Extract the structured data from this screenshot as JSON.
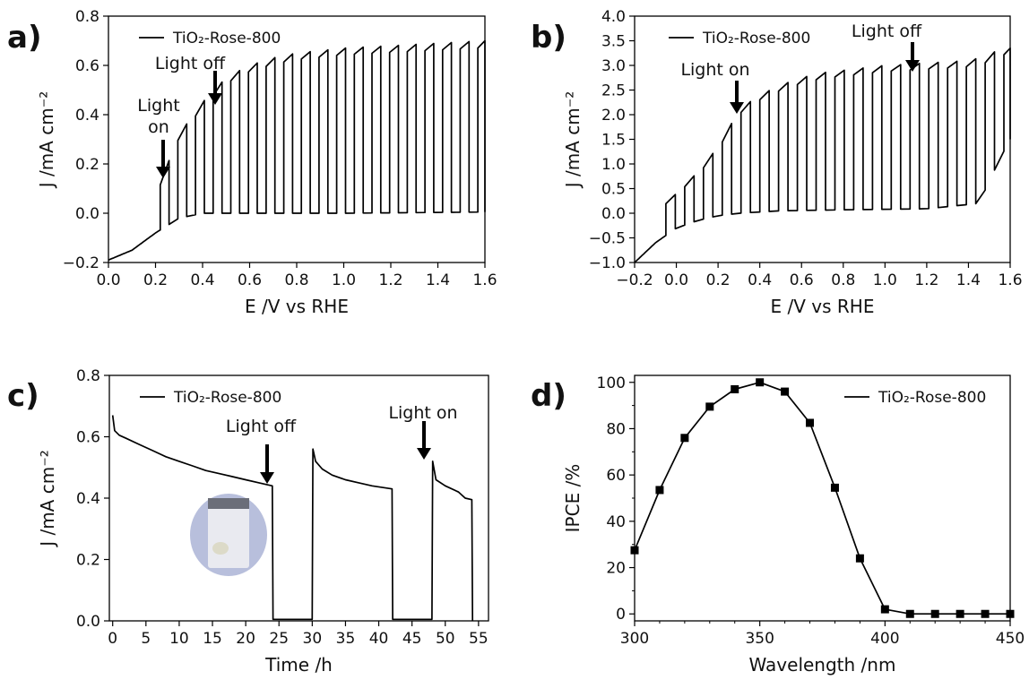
{
  "chart_data": [
    {
      "panel": "a)",
      "type": "line",
      "xlabel": "E /V vs RHE",
      "ylabel": "J /mA cm⁻²",
      "xlim": [
        0.0,
        1.6
      ],
      "ylim": [
        -0.2,
        0.8
      ],
      "xticks": [
        "0.0",
        "0.2",
        "0.4",
        "0.6",
        "0.8",
        "1.0",
        "1.2",
        "1.4",
        "1.6"
      ],
      "yticks": [
        "−0.2",
        "0.0",
        "0.2",
        "0.4",
        "0.6",
        "0.8"
      ],
      "grid": false,
      "legend": "top-left",
      "series": [
        {
          "name": "TiO₂-Rose-800",
          "color": "#000000",
          "style": "chopped light, dark current baseline with photocurrent pulses",
          "dark": [
            [
              0.0,
              -0.19
            ],
            [
              0.1,
              -0.15
            ],
            [
              0.2,
              -0.08
            ],
            [
              0.3,
              -0.02
            ],
            [
              0.4,
              0.0
            ],
            [
              0.6,
              0.0
            ],
            [
              1.0,
              0.0
            ],
            [
              1.6,
              0.005
            ]
          ],
          "light": [
            [
              0.22,
              0.12
            ],
            [
              0.3,
              0.32
            ],
            [
              0.4,
              0.45
            ],
            [
              0.5,
              0.55
            ],
            [
              0.6,
              0.6
            ],
            [
              0.7,
              0.63
            ],
            [
              0.8,
              0.65
            ],
            [
              0.9,
              0.66
            ],
            [
              1.0,
              0.67
            ],
            [
              1.2,
              0.68
            ],
            [
              1.4,
              0.69
            ],
            [
              1.6,
              0.7
            ]
          ]
        }
      ],
      "annotations": [
        {
          "text": "Light on",
          "lines": [
            "Light",
            "on"
          ]
        },
        {
          "text": "Light off"
        }
      ]
    },
    {
      "panel": "b)",
      "type": "line",
      "xlabel": "E /V vs RHE",
      "ylabel": "J /mA cm⁻²",
      "xlim": [
        -0.2,
        1.6
      ],
      "ylim": [
        -1.0,
        4.0
      ],
      "xticks": [
        "−0.2",
        "0.0",
        "0.2",
        "0.4",
        "0.6",
        "0.8",
        "1.0",
        "1.2",
        "1.4",
        "1.6"
      ],
      "yticks": [
        "−1.0",
        "−0.5",
        "0.0",
        "0.5",
        "1.0",
        "1.5",
        "2.0",
        "2.5",
        "3.0",
        "3.5",
        "4.0"
      ],
      "grid": false,
      "legend": "top-left",
      "series": [
        {
          "name": "TiO₂-Rose-800",
          "color": "#000000",
          "style": "chopped light, dark current baseline with photocurrent pulses",
          "dark": [
            [
              -0.2,
              -1.0
            ],
            [
              -0.1,
              -0.6
            ],
            [
              0.0,
              -0.3
            ],
            [
              0.1,
              -0.15
            ],
            [
              0.2,
              -0.05
            ],
            [
              0.3,
              0.0
            ],
            [
              0.5,
              0.05
            ],
            [
              0.8,
              0.07
            ],
            [
              1.2,
              0.09
            ],
            [
              1.45,
              0.2
            ],
            [
              1.55,
              1.1
            ],
            [
              1.6,
              1.5
            ]
          ],
          "light": [
            [
              -0.05,
              0.2
            ],
            [
              0.05,
              0.6
            ],
            [
              0.15,
              1.05
            ],
            [
              0.25,
              1.7
            ],
            [
              0.3,
              2.1
            ],
            [
              0.4,
              2.4
            ],
            [
              0.5,
              2.6
            ],
            [
              0.6,
              2.75
            ],
            [
              0.7,
              2.85
            ],
            [
              0.8,
              2.9
            ],
            [
              0.9,
              2.95
            ],
            [
              1.0,
              3.0
            ],
            [
              1.1,
              3.02
            ],
            [
              1.2,
              3.05
            ],
            [
              1.3,
              3.07
            ],
            [
              1.4,
              3.1
            ],
            [
              1.5,
              3.2
            ],
            [
              1.55,
              3.35
            ]
          ]
        }
      ],
      "annotations": [
        {
          "text": "Light on"
        },
        {
          "text": "Light off"
        }
      ]
    },
    {
      "panel": "c)",
      "type": "line",
      "xlabel": "Time /h",
      "ylabel": "J /mA cm⁻²",
      "xlim": [
        -0.5,
        56.5
      ],
      "ylim": [
        0.0,
        0.8
      ],
      "xticks": [
        "0",
        "5",
        "10",
        "15",
        "20",
        "25",
        "30",
        "35",
        "40",
        "45",
        "50",
        "55"
      ],
      "yticks": [
        "0.0",
        "0.2",
        "0.4",
        "0.6",
        "0.8"
      ],
      "grid": false,
      "legend": "top-left",
      "series": [
        {
          "name": "TiO₂-Rose-800",
          "color": "#000000",
          "points": [
            [
              0,
              0.67
            ],
            [
              0.3,
              0.62
            ],
            [
              1,
              0.605
            ],
            [
              2,
              0.595
            ],
            [
              4,
              0.575
            ],
            [
              6,
              0.555
            ],
            [
              8,
              0.535
            ],
            [
              10,
              0.52
            ],
            [
              12,
              0.505
            ],
            [
              14,
              0.49
            ],
            [
              16,
              0.48
            ],
            [
              18,
              0.47
            ],
            [
              20,
              0.46
            ],
            [
              22,
              0.45
            ],
            [
              24,
              0.44
            ],
            [
              24.1,
              0.005
            ],
            [
              30,
              0.005
            ],
            [
              30.1,
              0.56
            ],
            [
              30.5,
              0.52
            ],
            [
              31.5,
              0.495
            ],
            [
              33,
              0.475
            ],
            [
              35,
              0.46
            ],
            [
              37,
              0.45
            ],
            [
              39,
              0.44
            ],
            [
              42,
              0.43
            ],
            [
              42.1,
              0.005
            ],
            [
              48,
              0.005
            ],
            [
              48.1,
              0.52
            ],
            [
              48.6,
              0.46
            ],
            [
              50,
              0.44
            ],
            [
              52,
              0.42
            ],
            [
              53,
              0.4
            ],
            [
              54,
              0.395
            ],
            [
              54.1,
              0.0
            ]
          ]
        }
      ],
      "annotations": [
        {
          "text": "Light off"
        },
        {
          "text": "Light on"
        }
      ],
      "inset": "photo-of-sample"
    },
    {
      "panel": "d)",
      "type": "line",
      "xlabel": "Wavelength /nm",
      "ylabel": "IPCE /%",
      "xlim": [
        300,
        450
      ],
      "ylim": [
        -3,
        103
      ],
      "xticks": [
        "300",
        "350",
        "400",
        "450"
      ],
      "yticks": [
        "0",
        "20",
        "40",
        "60",
        "80",
        "100"
      ],
      "grid": false,
      "legend": "top-right",
      "marker": "square",
      "series": [
        {
          "name": "TiO₂-Rose-800",
          "color": "#000000",
          "x": [
            300,
            310,
            320,
            330,
            340,
            350,
            360,
            370,
            380,
            390,
            400,
            410,
            420,
            430,
            440,
            450
          ],
          "y": [
            27.5,
            53.5,
            76,
            89.5,
            97,
            100,
            96,
            82.5,
            54.5,
            24,
            2,
            0,
            0,
            0,
            0,
            0
          ]
        }
      ]
    }
  ]
}
